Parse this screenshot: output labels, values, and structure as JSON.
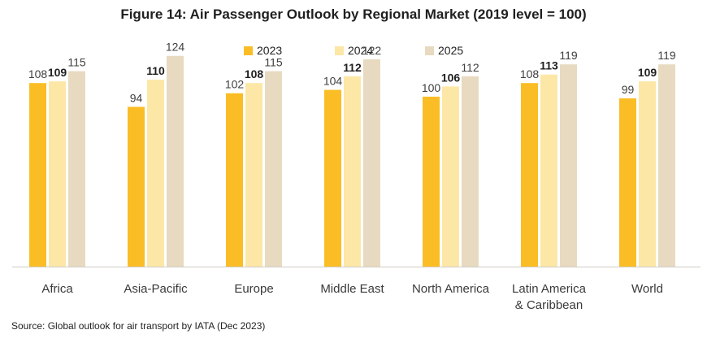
{
  "title": "Figure 14: Air Passenger Outlook by  Regional  Market (2019 level = 100)",
  "source": "Source: Global outlook for air transport by IATA (Dec 2023)",
  "colors": {
    "2023": "#FBBD25",
    "2024": "#FDE7A6",
    "2025": "#E8DAC0",
    "axis": "#D0CCC4",
    "label": "#404040"
  },
  "chart_data": {
    "type": "bar",
    "title": "Figure 14: Air Passenger Outlook by  Regional  Market (2019 level = 100)",
    "categories": [
      [
        "Africa"
      ],
      [
        "Asia-Pacific"
      ],
      [
        "Europe"
      ],
      [
        "Middle East"
      ],
      [
        "North America"
      ],
      [
        "Latin America",
        "& Caribbean"
      ],
      [
        "World"
      ]
    ],
    "series": [
      {
        "name": "2023",
        "values": [
          108,
          94,
          102,
          104,
          100,
          108,
          99
        ]
      },
      {
        "name": "2024",
        "values": [
          109,
          110,
          108,
          112,
          106,
          113,
          109
        ]
      },
      {
        "name": "2025",
        "values": [
          115,
          124,
          115,
          122,
          112,
          119,
          119
        ]
      }
    ],
    "bold_labels_series": "2024",
    "ylim": [
      0,
      125
    ],
    "grid": false,
    "legend_position": "top-center",
    "xlabel": "",
    "ylabel": ""
  }
}
